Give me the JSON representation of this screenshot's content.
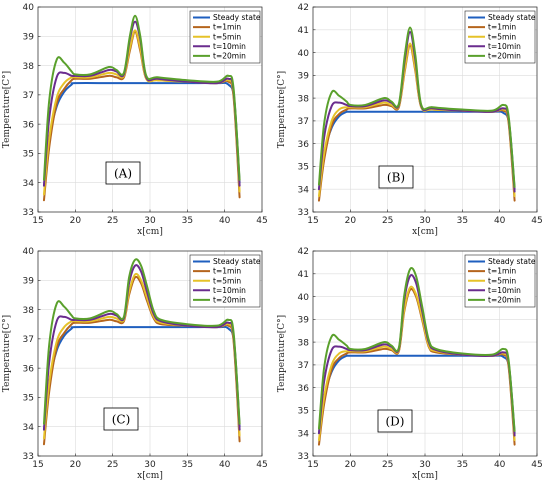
{
  "chart_data": [
    {
      "type": "line",
      "panel_label": "(A)",
      "xlabel": "x[cm]",
      "ylabel": "Temperature[C°]",
      "xlim": [
        15,
        45
      ],
      "ylim": [
        33,
        40
      ],
      "xticks": [
        15,
        20,
        25,
        30,
        35,
        40,
        45
      ],
      "yticks": [
        33,
        34,
        35,
        36,
        37,
        38,
        39,
        40
      ],
      "grid": true,
      "legend_position": "top-right",
      "series": [
        {
          "name": "Steady state",
          "color": "#1f5fbf",
          "x": [
            15.8,
            16.5,
            17.5,
            18.5,
            19.5,
            20,
            25,
            30,
            35,
            39,
            40.5,
            41.3,
            42
          ],
          "y": [
            33.9,
            35.5,
            36.6,
            37.1,
            37.35,
            37.4,
            37.4,
            37.4,
            37.4,
            37.4,
            37.35,
            36.8,
            34.0
          ]
        },
        {
          "name": "t=1min",
          "color": "#b5651d",
          "x": [
            15.8,
            16.5,
            17.5,
            18.5,
            19.5,
            20,
            22,
            24.5,
            25.5,
            26.5,
            27.3,
            28,
            28.7,
            29.5,
            31,
            35,
            39,
            40.5,
            41.2,
            42
          ],
          "y": [
            33.4,
            35.2,
            36.7,
            37.2,
            37.5,
            37.55,
            37.55,
            37.65,
            37.6,
            37.6,
            38.5,
            39.15,
            38.5,
            37.55,
            37.5,
            37.45,
            37.4,
            37.45,
            36.9,
            33.5
          ]
        },
        {
          "name": "t=5min",
          "color": "#e6c229",
          "x": [
            15.8,
            16.5,
            17.5,
            18.5,
            19.5,
            20,
            22,
            24.5,
            25.5,
            26.5,
            27.3,
            28,
            28.7,
            29.5,
            31,
            35,
            39,
            40.5,
            41.2,
            42
          ],
          "y": [
            33.6,
            35.5,
            36.9,
            37.4,
            37.6,
            37.6,
            37.6,
            37.75,
            37.7,
            37.65,
            38.6,
            39.2,
            38.6,
            37.55,
            37.5,
            37.45,
            37.4,
            37.5,
            37.0,
            33.7
          ]
        },
        {
          "name": "t=10min",
          "color": "#6a2c8e",
          "x": [
            15.8,
            16.5,
            17.5,
            18.5,
            19.5,
            20,
            22,
            24.5,
            25.5,
            26.5,
            27.3,
            28,
            28.7,
            29.5,
            31,
            35,
            39,
            40.5,
            41.2,
            42
          ],
          "y": [
            33.9,
            36.2,
            37.6,
            37.75,
            37.65,
            37.65,
            37.65,
            37.85,
            37.8,
            37.7,
            38.9,
            39.5,
            38.9,
            37.6,
            37.55,
            37.45,
            37.4,
            37.55,
            37.1,
            33.9
          ]
        },
        {
          "name": "t=20min",
          "color": "#5aa02c",
          "x": [
            15.8,
            16.5,
            17.5,
            18.5,
            19.5,
            20,
            22,
            24.5,
            25.5,
            26.5,
            27.3,
            28,
            28.7,
            29.5,
            31,
            35,
            39,
            40.5,
            41.2,
            42
          ],
          "y": [
            34.1,
            36.8,
            38.2,
            38.1,
            37.8,
            37.7,
            37.7,
            37.95,
            37.85,
            37.75,
            39.0,
            39.7,
            39.0,
            37.65,
            37.6,
            37.5,
            37.45,
            37.65,
            37.2,
            34.1
          ]
        }
      ]
    },
    {
      "type": "line",
      "panel_label": "(B)",
      "xlabel": "x[cm]",
      "ylabel": "Temperature[C°]",
      "xlim": [
        15,
        45
      ],
      "ylim": [
        33,
        42
      ],
      "xticks": [
        15,
        20,
        25,
        30,
        35,
        40,
        45
      ],
      "yticks": [
        33,
        34,
        35,
        36,
        37,
        38,
        39,
        40,
        41,
        42
      ],
      "grid": true,
      "legend_position": "top-right",
      "series": [
        {
          "name": "Steady state",
          "color": "#1f5fbf",
          "x": [
            15.8,
            16.5,
            17.5,
            18.5,
            19.5,
            20,
            25,
            30,
            35,
            39,
            40.5,
            41.3,
            42
          ],
          "y": [
            34.0,
            35.6,
            36.7,
            37.2,
            37.4,
            37.4,
            37.4,
            37.4,
            37.4,
            37.4,
            37.35,
            36.8,
            34.0
          ]
        },
        {
          "name": "t=1min",
          "color": "#b5651d",
          "x": [
            15.8,
            16.5,
            17.5,
            18.5,
            19.5,
            20,
            22,
            24.5,
            25.5,
            26.5,
            27.3,
            28,
            28.7,
            29.5,
            31,
            35,
            39,
            40.5,
            41.2,
            42
          ],
          "y": [
            33.5,
            35.3,
            36.8,
            37.3,
            37.5,
            37.55,
            37.55,
            37.7,
            37.65,
            37.6,
            39.2,
            40.3,
            39.2,
            37.6,
            37.5,
            37.45,
            37.4,
            37.45,
            36.9,
            33.5
          ]
        },
        {
          "name": "t=5min",
          "color": "#e6c229",
          "x": [
            15.8,
            16.5,
            17.5,
            18.5,
            19.5,
            20,
            22,
            24.5,
            25.5,
            26.5,
            27.3,
            28,
            28.7,
            29.5,
            31,
            35,
            39,
            40.5,
            41.2,
            42
          ],
          "y": [
            33.7,
            35.6,
            37.0,
            37.5,
            37.6,
            37.6,
            37.6,
            37.8,
            37.7,
            37.65,
            39.3,
            40.4,
            39.3,
            37.6,
            37.5,
            37.45,
            37.4,
            37.5,
            37.0,
            33.7
          ]
        },
        {
          "name": "t=10min",
          "color": "#6a2c8e",
          "x": [
            15.8,
            16.5,
            17.5,
            18.5,
            19.5,
            20,
            22,
            24.5,
            25.5,
            26.5,
            27.3,
            28,
            28.7,
            29.5,
            31,
            35,
            39,
            40.5,
            41.2,
            42
          ],
          "y": [
            34.0,
            36.3,
            37.65,
            37.8,
            37.7,
            37.65,
            37.65,
            37.9,
            37.8,
            37.7,
            39.7,
            40.9,
            39.7,
            37.65,
            37.55,
            37.45,
            37.4,
            37.55,
            37.1,
            33.9
          ]
        },
        {
          "name": "t=20min",
          "color": "#5aa02c",
          "x": [
            15.8,
            16.5,
            17.5,
            18.5,
            19.5,
            20,
            22,
            24.5,
            25.5,
            26.5,
            27.3,
            28,
            28.7,
            29.5,
            31,
            35,
            39,
            40.5,
            41.2,
            42
          ],
          "y": [
            34.2,
            36.9,
            38.25,
            38.1,
            37.85,
            37.7,
            37.7,
            38.0,
            37.85,
            37.75,
            39.9,
            41.1,
            39.9,
            37.7,
            37.6,
            37.5,
            37.45,
            37.7,
            37.2,
            34.1
          ]
        }
      ]
    },
    {
      "type": "line",
      "panel_label": "(C)",
      "xlabel": "x[cm]",
      "ylabel": "Temperature[C°]",
      "xlim": [
        15,
        45
      ],
      "ylim": [
        33,
        40
      ],
      "xticks": [
        15,
        20,
        25,
        30,
        35,
        40,
        45
      ],
      "yticks": [
        33,
        34,
        35,
        36,
        37,
        38,
        39,
        40
      ],
      "grid": true,
      "legend_position": "top-right",
      "series": [
        {
          "name": "Steady state",
          "color": "#1f5fbf",
          "x": [
            15.8,
            16.5,
            17.5,
            18.5,
            19.5,
            20,
            25,
            30,
            35,
            39,
            40.5,
            41.3,
            42
          ],
          "y": [
            33.9,
            35.5,
            36.6,
            37.1,
            37.35,
            37.4,
            37.4,
            37.4,
            37.4,
            37.4,
            37.35,
            36.8,
            34.0
          ]
        },
        {
          "name": "t=1min",
          "color": "#b5651d",
          "x": [
            15.8,
            16.5,
            17.5,
            18.5,
            19.5,
            20,
            22,
            24.5,
            25.5,
            26.5,
            27.2,
            28,
            28.8,
            29.6,
            30.5,
            31.5,
            35,
            39,
            40.5,
            41.2,
            42
          ],
          "y": [
            33.4,
            35.2,
            36.7,
            37.2,
            37.5,
            37.55,
            37.55,
            37.65,
            37.6,
            37.6,
            38.5,
            39.1,
            38.9,
            38.3,
            37.7,
            37.5,
            37.45,
            37.4,
            37.45,
            36.9,
            33.5
          ]
        },
        {
          "name": "t=5min",
          "color": "#e6c229",
          "x": [
            15.8,
            16.5,
            17.5,
            18.5,
            19.5,
            20,
            22,
            24.5,
            25.5,
            26.5,
            27.2,
            28,
            28.8,
            29.6,
            30.5,
            31.5,
            35,
            39,
            40.5,
            41.2,
            42
          ],
          "y": [
            33.6,
            35.5,
            36.9,
            37.4,
            37.6,
            37.6,
            37.6,
            37.75,
            37.7,
            37.65,
            38.6,
            39.2,
            39.0,
            38.4,
            37.75,
            37.55,
            37.45,
            37.4,
            37.5,
            37.0,
            33.7
          ]
        },
        {
          "name": "t=10min",
          "color": "#6a2c8e",
          "x": [
            15.8,
            16.5,
            17.5,
            18.5,
            19.5,
            20,
            22,
            24.5,
            25.5,
            26.5,
            27.2,
            28,
            28.8,
            29.6,
            30.5,
            31.5,
            35,
            39,
            40.5,
            41.2,
            42
          ],
          "y": [
            33.9,
            36.2,
            37.6,
            37.75,
            37.65,
            37.65,
            37.65,
            37.85,
            37.8,
            37.7,
            38.9,
            39.5,
            39.3,
            38.6,
            37.85,
            37.6,
            37.45,
            37.4,
            37.55,
            37.1,
            33.9
          ]
        },
        {
          "name": "t=20min",
          "color": "#5aa02c",
          "x": [
            15.8,
            16.5,
            17.5,
            18.5,
            19.5,
            20,
            22,
            24.5,
            25.5,
            26.5,
            27.2,
            28,
            28.8,
            29.6,
            30.5,
            31.5,
            35,
            39,
            40.5,
            41.2,
            42
          ],
          "y": [
            34.1,
            36.8,
            38.2,
            38.1,
            37.8,
            37.7,
            37.7,
            37.95,
            37.85,
            37.75,
            39.1,
            39.7,
            39.5,
            38.8,
            37.95,
            37.65,
            37.5,
            37.45,
            37.65,
            37.2,
            34.1
          ]
        }
      ]
    },
    {
      "type": "line",
      "panel_label": "(D)",
      "xlabel": "x[cm]",
      "ylabel": "Temperature[C°]",
      "xlim": [
        15,
        45
      ],
      "ylim": [
        33,
        42
      ],
      "xticks": [
        15,
        20,
        25,
        30,
        35,
        40,
        45
      ],
      "yticks": [
        33,
        34,
        35,
        36,
        37,
        38,
        39,
        40,
        41,
        42
      ],
      "grid": true,
      "legend_position": "top-right",
      "series": [
        {
          "name": "Steady state",
          "color": "#1f5fbf",
          "x": [
            15.8,
            16.5,
            17.5,
            18.5,
            19.5,
            20,
            25,
            30,
            35,
            39,
            40.5,
            41.3,
            42
          ],
          "y": [
            34.0,
            35.6,
            36.7,
            37.2,
            37.4,
            37.4,
            37.4,
            37.4,
            37.4,
            37.4,
            37.35,
            36.8,
            34.0
          ]
        },
        {
          "name": "t=1min",
          "color": "#b5651d",
          "x": [
            15.8,
            16.5,
            17.5,
            18.5,
            19.5,
            20,
            22,
            24.5,
            25.5,
            26.5,
            27.2,
            28,
            28.8,
            29.6,
            30.5,
            31.5,
            35,
            39,
            40.5,
            41.2,
            42
          ],
          "y": [
            33.5,
            35.3,
            36.8,
            37.3,
            37.5,
            37.55,
            37.55,
            37.7,
            37.65,
            37.6,
            39.3,
            40.3,
            40.0,
            39.0,
            37.8,
            37.55,
            37.45,
            37.4,
            37.45,
            36.9,
            33.5
          ]
        },
        {
          "name": "t=5min",
          "color": "#e6c229",
          "x": [
            15.8,
            16.5,
            17.5,
            18.5,
            19.5,
            20,
            22,
            24.5,
            25.5,
            26.5,
            27.2,
            28,
            28.8,
            29.6,
            30.5,
            31.5,
            35,
            39,
            40.5,
            41.2,
            42
          ],
          "y": [
            33.7,
            35.6,
            37.0,
            37.5,
            37.6,
            37.6,
            37.6,
            37.8,
            37.7,
            37.65,
            39.4,
            40.4,
            40.1,
            39.1,
            37.85,
            37.6,
            37.45,
            37.4,
            37.5,
            37.0,
            33.7
          ]
        },
        {
          "name": "t=10min",
          "color": "#6a2c8e",
          "x": [
            15.8,
            16.5,
            17.5,
            18.5,
            19.5,
            20,
            22,
            24.5,
            25.5,
            26.5,
            27.2,
            28,
            28.8,
            29.6,
            30.5,
            31.5,
            35,
            39,
            40.5,
            41.2,
            42
          ],
          "y": [
            34.0,
            36.3,
            37.65,
            37.8,
            37.7,
            37.65,
            37.65,
            37.9,
            37.8,
            37.7,
            39.8,
            40.9,
            40.6,
            39.4,
            38.0,
            37.65,
            37.45,
            37.4,
            37.55,
            37.1,
            33.9
          ]
        },
        {
          "name": "t=20min",
          "color": "#5aa02c",
          "x": [
            15.8,
            16.5,
            17.5,
            18.5,
            19.5,
            20,
            22,
            24.5,
            25.5,
            26.5,
            27.2,
            28,
            28.8,
            29.6,
            30.5,
            31.5,
            35,
            39,
            40.5,
            41.2,
            42
          ],
          "y": [
            34.2,
            36.9,
            38.25,
            38.1,
            37.85,
            37.7,
            37.7,
            38.0,
            37.85,
            37.75,
            40.0,
            41.2,
            40.9,
            39.6,
            38.1,
            37.7,
            37.5,
            37.45,
            37.7,
            37.2,
            34.1
          ]
        }
      ]
    }
  ]
}
